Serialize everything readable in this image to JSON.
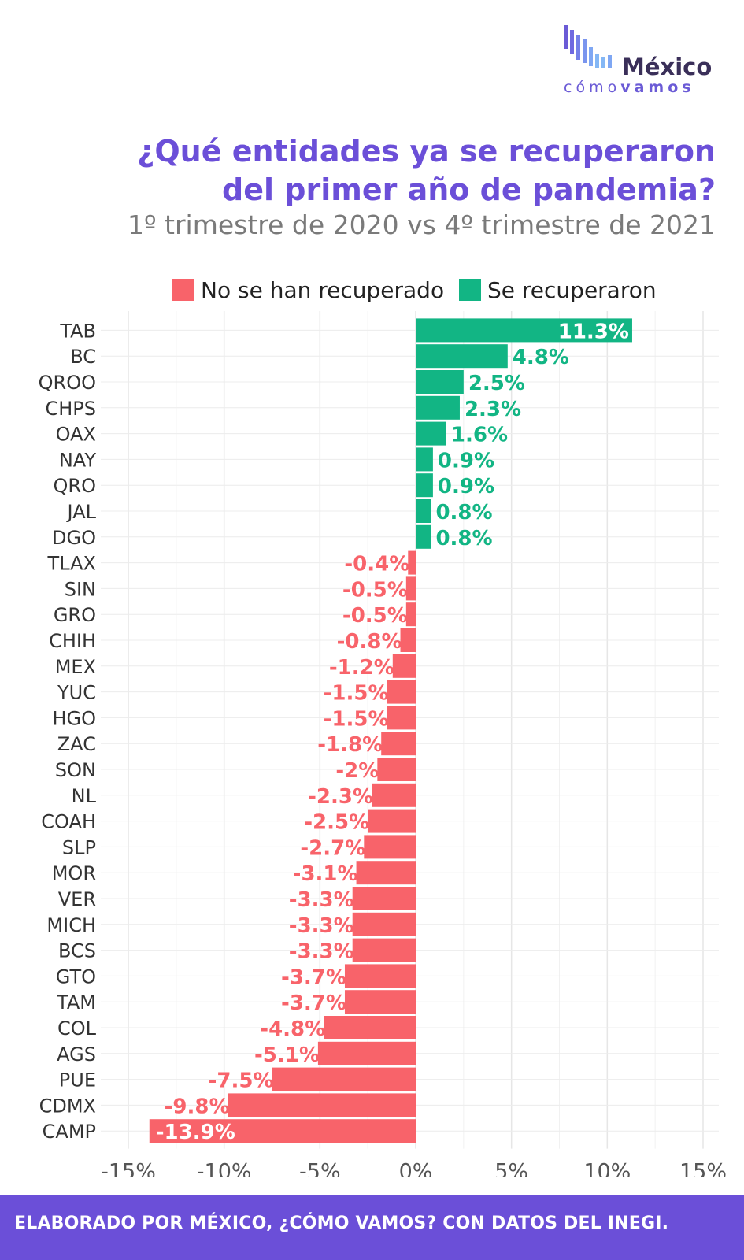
{
  "logo": {
    "name_top": "México",
    "name_bottom_light": "cómo",
    "name_bottom_bold": "vamos"
  },
  "header": {
    "title_line1": "¿Qué entidades ya se recuperaron",
    "title_line2": "del primer año de pandemia?",
    "subtitle": "1º trimestre de 2020 vs 4º trimestre de 2021"
  },
  "legend": {
    "items": [
      {
        "label": "No se han recuperado",
        "color": "#f8636a"
      },
      {
        "label": "Se recuperaron",
        "color": "#12b584"
      }
    ]
  },
  "chart_data": {
    "type": "bar",
    "orientation": "horizontal",
    "categories": [
      "TAB",
      "BC",
      "QROO",
      "CHPS",
      "OAX",
      "NAY",
      "QRO",
      "JAL",
      "DGO",
      "TLAX",
      "SIN",
      "GRO",
      "CHIH",
      "MEX",
      "YUC",
      "HGO",
      "ZAC",
      "SON",
      "NL",
      "COAH",
      "SLP",
      "MOR",
      "VER",
      "MICH",
      "BCS",
      "GTO",
      "TAM",
      "COL",
      "AGS",
      "PUE",
      "CDMX",
      "CAMP"
    ],
    "values": [
      11.3,
      4.8,
      2.5,
      2.3,
      1.6,
      0.9,
      0.9,
      0.8,
      0.8,
      -0.4,
      -0.5,
      -0.5,
      -0.8,
      -1.2,
      -1.5,
      -1.5,
      -1.8,
      -2,
      -2.3,
      -2.5,
      -2.7,
      -3.1,
      -3.3,
      -3.3,
      -3.3,
      -3.7,
      -3.7,
      -4.8,
      -5.1,
      -7.5,
      -9.8,
      -13.9
    ],
    "labels": [
      "11.3%",
      "4.8%",
      "2.5%",
      "2.3%",
      "1.6%",
      "0.9%",
      "0.9%",
      "0.8%",
      "0.8%",
      "-0.4%",
      "-0.5%",
      "-0.5%",
      "-0.8%",
      "-1.2%",
      "-1.5%",
      "-1.5%",
      "-1.8%",
      "-2%",
      "-2.3%",
      "-2.5%",
      "-2.7%",
      "-3.1%",
      "-3.3%",
      "-3.3%",
      "-3.3%",
      "-3.7%",
      "-3.7%",
      "-4.8%",
      "-5.1%",
      "-7.5%",
      "-9.8%",
      "-13.9%"
    ],
    "xlim": [
      -15,
      15
    ],
    "xticks": [
      -15,
      -10,
      -5,
      0,
      5,
      10,
      15
    ],
    "xtick_labels": [
      "-15%",
      "-10%",
      "-5%",
      "0%",
      "5%",
      "10%",
      "15%"
    ],
    "grid": true,
    "legend_position": "top",
    "colors": {
      "positive": "#12b584",
      "negative": "#f8636a"
    }
  },
  "footer": {
    "text": "ELABORADO POR MÉXICO, ¿CÓMO VAMOS? CON DATOS DEL INEGI."
  }
}
